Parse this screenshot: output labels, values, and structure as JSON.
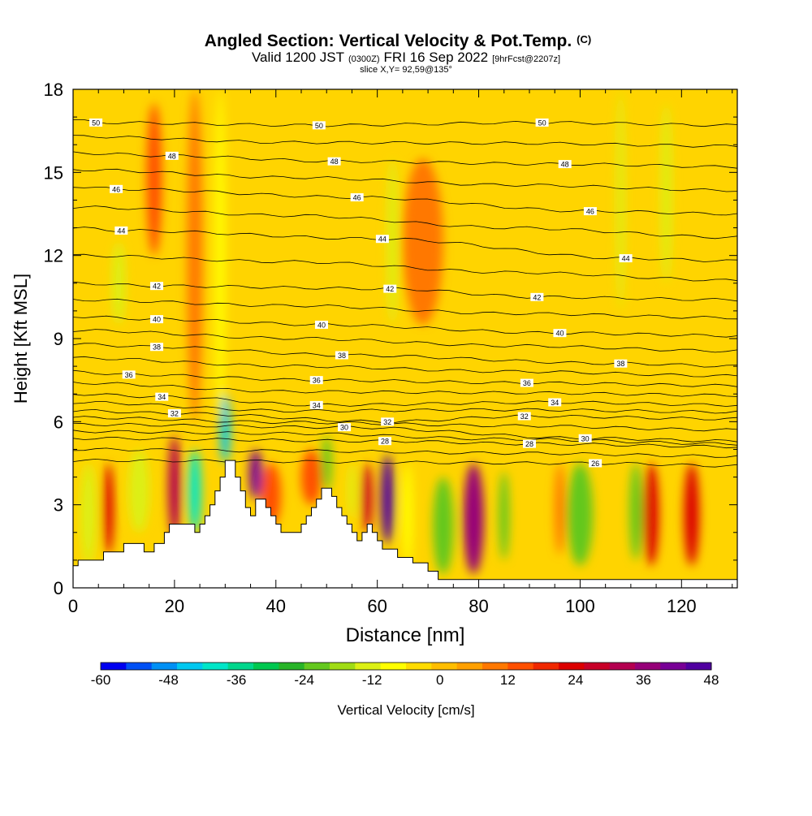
{
  "chart_data": {
    "type": "heatmap",
    "title": "Angled Section: Vertical Velocity & Pot.Temp.",
    "title_mark": "(C)",
    "subtitle_parts": [
      "Valid 1200 JST",
      "(0300Z)",
      "FRI 16 Sep 2022",
      "[9hrFcst@2207z]"
    ],
    "subtitle2": "slice X,Y= 92,59@135°",
    "xlabel": "Distance [nm]",
    "ylabel": "Height [Kft MSL]",
    "xlim": [
      0,
      131
    ],
    "ylim": [
      0,
      18
    ],
    "x_ticks": [
      0,
      20,
      40,
      60,
      80,
      100,
      120
    ],
    "y_ticks": [
      0,
      3,
      6,
      9,
      12,
      15,
      18
    ],
    "colorbar": {
      "label": "Vertical Velocity [cm/s]",
      "ticks": [
        -60,
        -48,
        -36,
        -24,
        -12,
        0,
        12,
        24,
        36,
        48
      ],
      "colors": [
        "#0000f0",
        "#0050f5",
        "#0090f5",
        "#00c8f0",
        "#00e6c8",
        "#00d78c",
        "#00c850",
        "#28b428",
        "#64c81e",
        "#a0dc14",
        "#dcf014",
        "#ffff00",
        "#ffdc00",
        "#ffbe00",
        "#ffa000",
        "#ff7800",
        "#ff5000",
        "#f02800",
        "#dc0000",
        "#c80028",
        "#b40050",
        "#960078",
        "#780096",
        "#5000a0"
      ]
    },
    "velocity_columns": [
      {
        "x": 3,
        "w": 3,
        "y0": 0.8,
        "y1": 4.5,
        "value": -12
      },
      {
        "x": 7,
        "w": 2,
        "y0": 1.2,
        "y1": 4.5,
        "value": 24
      },
      {
        "x": 9,
        "w": 2.5,
        "y0": 9.5,
        "y1": 12.5,
        "value": -12
      },
      {
        "x": 13,
        "w": 4,
        "y0": 2.0,
        "y1": 5.0,
        "value": -14
      },
      {
        "x": 16,
        "w": 3,
        "y0": 12.0,
        "y1": 17.5,
        "value": 12
      },
      {
        "x": 20,
        "w": 2.5,
        "y0": 1.8,
        "y1": 5.5,
        "value": 30
      },
      {
        "x": 24,
        "w": 2.5,
        "y0": 2.0,
        "y1": 5.0,
        "value": -38
      },
      {
        "x": 24,
        "w": 3,
        "y0": 6.0,
        "y1": 18.0,
        "value": 10
      },
      {
        "x": 29,
        "w": 2,
        "y0": 6.0,
        "y1": 18.0,
        "value": -10
      },
      {
        "x": 30,
        "w": 2,
        "y0": 4.5,
        "y1": 7.0,
        "value": -44
      },
      {
        "x": 36,
        "w": 2.5,
        "y0": 3.2,
        "y1": 5.0,
        "value": 40
      },
      {
        "x": 39,
        "w": 4,
        "y0": 2.2,
        "y1": 4.5,
        "value": 14
      },
      {
        "x": 47,
        "w": 4,
        "y0": 3.0,
        "y1": 5.0,
        "value": 12
      },
      {
        "x": 50,
        "w": 2,
        "y0": 3.5,
        "y1": 5.5,
        "value": -20
      },
      {
        "x": 55,
        "w": 1.5,
        "y0": 2.5,
        "y1": 4.5,
        "value": -14
      },
      {
        "x": 58,
        "w": 2,
        "y0": 2.0,
        "y1": 4.5,
        "value": 26
      },
      {
        "x": 62,
        "w": 2.5,
        "y0": 1.6,
        "y1": 4.8,
        "value": 44
      },
      {
        "x": 63,
        "w": 2,
        "y0": 9.5,
        "y1": 15.5,
        "value": -14
      },
      {
        "x": 66,
        "w": 2,
        "y0": 0.8,
        "y1": 4.5,
        "value": -10
      },
      {
        "x": 69,
        "w": 8,
        "y0": 9.5,
        "y1": 15.5,
        "value": 8
      },
      {
        "x": 73,
        "w": 4,
        "y0": 0.5,
        "y1": 4.0,
        "value": -24
      },
      {
        "x": 79,
        "w": 4,
        "y0": 0.5,
        "y1": 4.5,
        "value": 36
      },
      {
        "x": 85,
        "w": 2,
        "y0": 1.0,
        "y1": 4.2,
        "value": -22
      },
      {
        "x": 96,
        "w": 2,
        "y0": 1.2,
        "y1": 4.5,
        "value": 10
      },
      {
        "x": 100,
        "w": 5,
        "y0": 0.8,
        "y1": 4.5,
        "value": -22
      },
      {
        "x": 108,
        "w": 1.5,
        "y0": 10.0,
        "y1": 18.0,
        "value": -12
      },
      {
        "x": 111,
        "w": 2.5,
        "y0": 1.0,
        "y1": 4.5,
        "value": -22
      },
      {
        "x": 114,
        "w": 3,
        "y0": 0.8,
        "y1": 4.5,
        "value": 24
      },
      {
        "x": 117,
        "w": 2,
        "y0": 11.0,
        "y1": 17.5,
        "value": -12
      },
      {
        "x": 122,
        "w": 3,
        "y0": 0.8,
        "y1": 4.5,
        "value": 24
      }
    ],
    "theta_levels": [
      50,
      48,
      46,
      44,
      42,
      40,
      38,
      36,
      34,
      32,
      30,
      28,
      26
    ],
    "theta_labels": [
      {
        "text": "50",
        "x": 4.5,
        "y": 16.8
      },
      {
        "text": "50",
        "x": 48.5,
        "y": 16.7
      },
      {
        "text": "50",
        "x": 92.5,
        "y": 16.8
      },
      {
        "text": "48",
        "x": 19.5,
        "y": 15.6
      },
      {
        "text": "48",
        "x": 51.5,
        "y": 15.4
      },
      {
        "text": "48",
        "x": 97,
        "y": 15.3
      },
      {
        "text": "46",
        "x": 8.5,
        "y": 14.4
      },
      {
        "text": "46",
        "x": 56,
        "y": 14.1
      },
      {
        "text": "46",
        "x": 102,
        "y": 13.6
      },
      {
        "text": "44",
        "x": 9.5,
        "y": 12.9
      },
      {
        "text": "44",
        "x": 61,
        "y": 12.6
      },
      {
        "text": "44",
        "x": 109,
        "y": 11.9
      },
      {
        "text": "42",
        "x": 16.5,
        "y": 10.9
      },
      {
        "text": "42",
        "x": 62.5,
        "y": 10.8
      },
      {
        "text": "42",
        "x": 91.5,
        "y": 10.5
      },
      {
        "text": "40",
        "x": 16.5,
        "y": 9.7
      },
      {
        "text": "40",
        "x": 49,
        "y": 9.5
      },
      {
        "text": "40",
        "x": 96,
        "y": 9.2
      },
      {
        "text": "38",
        "x": 16.5,
        "y": 8.7
      },
      {
        "text": "38",
        "x": 53,
        "y": 8.4
      },
      {
        "text": "38",
        "x": 108,
        "y": 8.1
      },
      {
        "text": "36",
        "x": 11,
        "y": 7.7
      },
      {
        "text": "36",
        "x": 48,
        "y": 7.5
      },
      {
        "text": "36",
        "x": 89.5,
        "y": 7.4
      },
      {
        "text": "34",
        "x": 17.5,
        "y": 6.9
      },
      {
        "text": "34",
        "x": 48,
        "y": 6.6
      },
      {
        "text": "34",
        "x": 95,
        "y": 6.7
      },
      {
        "text": "32",
        "x": 20,
        "y": 6.3
      },
      {
        "text": "32",
        "x": 62,
        "y": 6.0
      },
      {
        "text": "32",
        "x": 89,
        "y": 6.2
      },
      {
        "text": "30",
        "x": 53.5,
        "y": 5.8
      },
      {
        "text": "30",
        "x": 101,
        "y": 5.4
      },
      {
        "text": "28",
        "x": 61.5,
        "y": 5.3
      },
      {
        "text": "28",
        "x": 90,
        "y": 5.2
      },
      {
        "text": "26",
        "x": 103,
        "y": 4.5
      }
    ],
    "terrain": [
      [
        0,
        0.8
      ],
      [
        1,
        0.8
      ],
      [
        1,
        1.0
      ],
      [
        6,
        1.0
      ],
      [
        6,
        1.3
      ],
      [
        10,
        1.3
      ],
      [
        10,
        1.6
      ],
      [
        14,
        1.6
      ],
      [
        14,
        1.3
      ],
      [
        16,
        1.3
      ],
      [
        16,
        1.6
      ],
      [
        18,
        1.6
      ],
      [
        18,
        2.0
      ],
      [
        19,
        2.0
      ],
      [
        19,
        2.3
      ],
      [
        24,
        2.3
      ],
      [
        24,
        2.0
      ],
      [
        25,
        2.0
      ],
      [
        25,
        2.3
      ],
      [
        26,
        2.3
      ],
      [
        26,
        2.6
      ],
      [
        27,
        2.6
      ],
      [
        27,
        3.0
      ],
      [
        28,
        3.0
      ],
      [
        28,
        3.5
      ],
      [
        29,
        3.5
      ],
      [
        29,
        4.0
      ],
      [
        30,
        4.0
      ],
      [
        30,
        4.6
      ],
      [
        32,
        4.6
      ],
      [
        32,
        4.0
      ],
      [
        33,
        4.0
      ],
      [
        33,
        3.5
      ],
      [
        34,
        3.5
      ],
      [
        34,
        2.9
      ],
      [
        35,
        2.9
      ],
      [
        35,
        2.6
      ],
      [
        36,
        2.6
      ],
      [
        36,
        3.2
      ],
      [
        38,
        3.2
      ],
      [
        38,
        2.9
      ],
      [
        39,
        2.9
      ],
      [
        39,
        2.6
      ],
      [
        40,
        2.6
      ],
      [
        40,
        2.3
      ],
      [
        41,
        2.3
      ],
      [
        41,
        2.0
      ],
      [
        45,
        2.0
      ],
      [
        45,
        2.3
      ],
      [
        46,
        2.3
      ],
      [
        46,
        2.6
      ],
      [
        47,
        2.6
      ],
      [
        47,
        2.9
      ],
      [
        48,
        2.9
      ],
      [
        48,
        3.2
      ],
      [
        49,
        3.2
      ],
      [
        49,
        3.6
      ],
      [
        51,
        3.6
      ],
      [
        51,
        3.3
      ],
      [
        52,
        3.3
      ],
      [
        52,
        2.9
      ],
      [
        53,
        2.9
      ],
      [
        53,
        2.6
      ],
      [
        54,
        2.6
      ],
      [
        54,
        2.3
      ],
      [
        55,
        2.3
      ],
      [
        55,
        2.0
      ],
      [
        56,
        2.0
      ],
      [
        56,
        1.7
      ],
      [
        57,
        1.7
      ],
      [
        57,
        2.0
      ],
      [
        58,
        2.0
      ],
      [
        58,
        2.3
      ],
      [
        59,
        2.3
      ],
      [
        59,
        2.0
      ],
      [
        60,
        2.0
      ],
      [
        60,
        1.7
      ],
      [
        61,
        1.7
      ],
      [
        61,
        1.4
      ],
      [
        64,
        1.4
      ],
      [
        64,
        1.1
      ],
      [
        67,
        1.1
      ],
      [
        67,
        0.9
      ],
      [
        70,
        0.9
      ],
      [
        70,
        0.6
      ],
      [
        72,
        0.6
      ],
      [
        72,
        0.3
      ],
      [
        131,
        0.3
      ],
      [
        131,
        0
      ],
      [
        0,
        0
      ]
    ]
  }
}
